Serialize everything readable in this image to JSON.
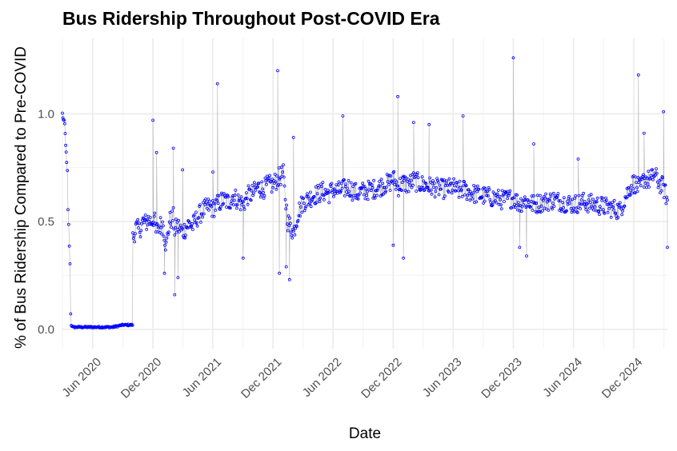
{
  "chart_data": {
    "type": "line",
    "title": "Bus Ridership Throughout Post-COVID Era",
    "xlabel": "Date",
    "ylabel": "% of Bus Ridership Compared to Pre-COVID",
    "x_range": [
      "2020-03-01",
      "2025-03-13"
    ],
    "y_range": [
      -0.09,
      1.35
    ],
    "y_ticks": [
      0.0,
      0.5,
      1.0
    ],
    "y_tick_labels": [
      "0.0",
      "0.5",
      "1.0"
    ],
    "x_ticks": [
      "2020-06-01",
      "2020-12-01",
      "2021-06-01",
      "2021-12-01",
      "2022-06-01",
      "2022-12-01",
      "2023-06-01",
      "2023-12-01",
      "2024-06-01",
      "2024-12-01"
    ],
    "x_tick_labels": [
      "Jun 2020",
      "Dec 2020",
      "Jun 2021",
      "Dec 2021",
      "Jun 2022",
      "Dec 2022",
      "Jun 2023",
      "Dec 2023",
      "Jun 2024",
      "Dec 2024"
    ],
    "grid": true,
    "line_color": "#b3b3b3",
    "point_color": "#0000ff",
    "series": [
      {
        "x": [
          "2020-03-01",
          "2020-03-04",
          "2020-03-08",
          "2020-03-11",
          "2020-03-14",
          "2020-03-16",
          "2020-03-18",
          "2020-03-20",
          "2020-03-22",
          "2020-03-24",
          "2020-03-26",
          "2020-03-28",
          "2020-04-01",
          "2020-05-01",
          "2020-06-01",
          "2020-07-01",
          "2020-08-01",
          "2020-09-01",
          "2020-09-30",
          "2020-10-01",
          "2020-10-10",
          "2020-10-20",
          "2020-11-01",
          "2020-11-10",
          "2020-11-15",
          "2020-11-25",
          "2020-12-05",
          "2020-12-10",
          "2020-12-20",
          "2021-01-01",
          "2021-01-10",
          "2021-01-20",
          "2021-02-01",
          "2021-02-05",
          "2021-02-15",
          "2021-03-01",
          "2021-03-20",
          "2021-04-01",
          "2021-04-15",
          "2021-05-01",
          "2021-05-20",
          "2021-06-01",
          "2021-06-15",
          "2021-07-01",
          "2021-07-20",
          "2021-08-01",
          "2021-08-15",
          "2021-09-01",
          "2021-09-15",
          "2021-10-01",
          "2021-10-15",
          "2021-11-01",
          "2021-11-15",
          "2021-12-01",
          "2021-12-15",
          "2022-01-01",
          "2022-01-05",
          "2022-01-15",
          "2022-02-01",
          "2022-02-15",
          "2022-03-01",
          "2022-03-15",
          "2022-04-01",
          "2022-04-20",
          "2022-05-01",
          "2022-05-20",
          "2022-06-01",
          "2022-06-15",
          "2022-07-01",
          "2022-07-20",
          "2022-08-01",
          "2022-08-15",
          "2022-09-01",
          "2022-10-01",
          "2022-10-20",
          "2022-11-01",
          "2022-11-20",
          "2022-12-01",
          "2022-12-15",
          "2023-01-01",
          "2023-01-15",
          "2023-02-01",
          "2023-03-01",
          "2023-04-01",
          "2023-05-01",
          "2023-06-01",
          "2023-06-15",
          "2023-07-01",
          "2023-08-01",
          "2023-09-01",
          "2023-10-01",
          "2023-11-01",
          "2023-12-01",
          "2023-12-20",
          "2024-01-01",
          "2024-02-01",
          "2024-03-01",
          "2024-04-01",
          "2024-05-01",
          "2024-06-01",
          "2024-07-01",
          "2024-08-01",
          "2024-09-01",
          "2024-10-01",
          "2024-10-20",
          "2024-11-01",
          "2024-11-20",
          "2024-12-01",
          "2024-12-20",
          "2025-01-01",
          "2025-01-20",
          "2025-02-01",
          "2025-02-15",
          "2025-03-01",
          "2025-03-13"
        ],
        "y": [
          1.0,
          0.97,
          0.95,
          0.86,
          0.77,
          0.73,
          0.55,
          0.49,
          0.38,
          0.31,
          0.07,
          0.02,
          0.01,
          0.01,
          0.01,
          0.01,
          0.01,
          0.02,
          0.02,
          0.42,
          0.47,
          0.46,
          0.5,
          0.49,
          0.51,
          0.5,
          0.52,
          0.45,
          0.48,
          0.49,
          0.38,
          0.5,
          0.52,
          0.46,
          0.48,
          0.45,
          0.49,
          0.48,
          0.52,
          0.55,
          0.57,
          0.56,
          0.58,
          0.6,
          0.59,
          0.62,
          0.6,
          0.58,
          0.62,
          0.63,
          0.66,
          0.65,
          0.67,
          0.67,
          0.7,
          0.72,
          0.64,
          0.5,
          0.45,
          0.54,
          0.59,
          0.6,
          0.62,
          0.63,
          0.64,
          0.63,
          0.65,
          0.64,
          0.65,
          0.66,
          0.64,
          0.63,
          0.64,
          0.65,
          0.66,
          0.67,
          0.68,
          0.7,
          0.66,
          0.68,
          0.67,
          0.69,
          0.67,
          0.66,
          0.65,
          0.66,
          0.64,
          0.65,
          0.63,
          0.62,
          0.61,
          0.6,
          0.61,
          0.58,
          0.6,
          0.58,
          0.59,
          0.6,
          0.59,
          0.58,
          0.59,
          0.58,
          0.57,
          0.56,
          0.55,
          0.6,
          0.66,
          0.68,
          0.65,
          0.7,
          0.69,
          0.72,
          0.68,
          0.66,
          0.6
        ]
      }
    ],
    "spikes": [
      {
        "x": "2020-12-01",
        "y": 0.97
      },
      {
        "x": "2020-12-12",
        "y": 0.82
      },
      {
        "x": "2021-02-01",
        "y": 0.84
      },
      {
        "x": "2021-03-01",
        "y": 0.74
      },
      {
        "x": "2021-06-01",
        "y": 0.73
      },
      {
        "x": "2021-06-15",
        "y": 1.14
      },
      {
        "x": "2021-12-15",
        "y": 1.2
      },
      {
        "x": "2022-02-01",
        "y": 0.89
      },
      {
        "x": "2022-07-01",
        "y": 0.99
      },
      {
        "x": "2022-12-15",
        "y": 1.08
      },
      {
        "x": "2023-02-01",
        "y": 0.96
      },
      {
        "x": "2023-03-20",
        "y": 0.95
      },
      {
        "x": "2023-07-01",
        "y": 0.99
      },
      {
        "x": "2023-12-01",
        "y": 1.26
      },
      {
        "x": "2024-02-01",
        "y": 0.86
      },
      {
        "x": "2024-06-15",
        "y": 0.79
      },
      {
        "x": "2024-12-15",
        "y": 1.18
      },
      {
        "x": "2025-01-01",
        "y": 0.91
      },
      {
        "x": "2025-03-01",
        "y": 1.01
      },
      {
        "x": "2021-01-05",
        "y": 0.26
      },
      {
        "x": "2021-02-05",
        "y": 0.16
      },
      {
        "x": "2021-02-15",
        "y": 0.24
      },
      {
        "x": "2021-12-20",
        "y": 0.26
      },
      {
        "x": "2022-01-10",
        "y": 0.29
      },
      {
        "x": "2022-01-20",
        "y": 0.23
      },
      {
        "x": "2021-09-01",
        "y": 0.33
      },
      {
        "x": "2022-12-01",
        "y": 0.39
      },
      {
        "x": "2023-01-01",
        "y": 0.33
      },
      {
        "x": "2023-12-20",
        "y": 0.38
      },
      {
        "x": "2024-01-10",
        "y": 0.34
      },
      {
        "x": "2025-03-13",
        "y": 0.38
      }
    ]
  }
}
